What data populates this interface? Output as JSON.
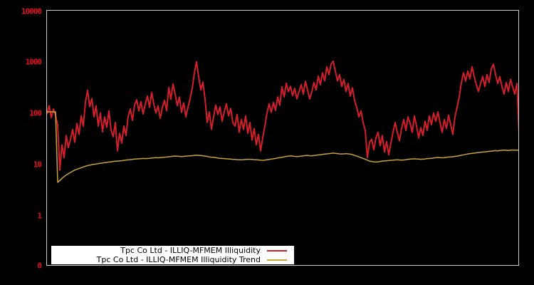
{
  "colors": {
    "background": "#000000",
    "plot_border": "#c9c9c9",
    "axis_label": "#e3101e",
    "series_red": "#d51f2b",
    "series_trend": "#c9a43c",
    "legend_background": "#ffffff",
    "legend_text": "#000000"
  },
  "chart_data": {
    "type": "line",
    "title": "",
    "background": "#000000",
    "grid": false,
    "legend_position": "bottom-left-inside",
    "x_axis": {
      "tick_labels": []
    },
    "y_axis": {
      "scale": "log",
      "tick_labels": [
        "10000",
        "1000",
        "100",
        "10",
        "1",
        "0"
      ],
      "tick_values": [
        10000,
        1000,
        100,
        10,
        1,
        0
      ],
      "range_top": 10000,
      "range_bottom_label": 0,
      "color": "#e3101e"
    },
    "x0": 0,
    "dx": 3,
    "series": [
      {
        "name": "Tpc Co Ltd - ILLIQ-MFMEM Illiquidity",
        "color": "#d51f2b",
        "stroke_width": 2,
        "values": [
          100,
          145,
          85,
          125,
          95,
          60,
          8,
          25,
          14,
          38,
          22,
          32,
          50,
          28,
          65,
          40,
          92,
          58,
          170,
          290,
          140,
          200,
          88,
          145,
          58,
          105,
          45,
          88,
          55,
          115,
          48,
          36,
          68,
          19,
          42,
          27,
          58,
          38,
          90,
          125,
          75,
          150,
          190,
          115,
          175,
          100,
          155,
          225,
          135,
          265,
          155,
          105,
          145,
          82,
          135,
          185,
          115,
          330,
          195,
          385,
          245,
          145,
          215,
          108,
          165,
          88,
          135,
          200,
          320,
          640,
          1050,
          540,
          295,
          420,
          195,
          68,
          110,
          50,
          88,
          150,
          98,
          138,
          72,
          112,
          158,
          92,
          128,
          68,
          58,
          98,
          44,
          78,
          50,
          92,
          42,
          68,
          31,
          52,
          25,
          40,
          19,
          34,
          58,
          105,
          158,
          108,
          168,
          118,
          215,
          148,
          340,
          215,
          400,
          275,
          345,
          228,
          315,
          198,
          275,
          375,
          245,
          435,
          295,
          198,
          275,
          415,
          295,
          550,
          375,
          640,
          445,
          840,
          590,
          950,
          1080,
          690,
          445,
          590,
          345,
          475,
          275,
          395,
          225,
          325,
          185,
          135,
          88,
          115,
          68,
          48,
          14,
          28,
          32,
          20,
          34,
          44,
          24,
          38,
          18,
          29,
          16,
          27,
          44,
          68,
          44,
          30,
          52,
          78,
          48,
          88,
          66,
          44,
          92,
          58,
          34,
          54,
          38,
          72,
          48,
          92,
          62,
          105,
          72,
          110,
          68,
          44,
          78,
          52,
          95,
          62,
          40,
          88,
          135,
          215,
          410,
          640,
          440,
          690,
          490,
          840,
          540,
          375,
          275,
          395,
          540,
          345,
          590,
          415,
          760,
          940,
          590,
          395,
          540,
          345,
          245,
          415,
          275,
          475,
          340,
          245,
          395,
          42
        ]
      },
      {
        "name": "Tpc Co Ltd - ILLIQ-MFMEM Illiquidity Trend",
        "color": "#c9a43c",
        "stroke_width": 1.5,
        "values": [
          110,
          110,
          110,
          110,
          110,
          4.6,
          5.0,
          5.5,
          6.0,
          6.4,
          6.8,
          7.2,
          7.6,
          8.0,
          8.3,
          8.6,
          8.9,
          9.2,
          9.5,
          9.8,
          10.0,
          10.2,
          10.4,
          10.5,
          10.7,
          10.9,
          11.0,
          11.2,
          11.3,
          11.5,
          11.6,
          11.8,
          11.9,
          12.0,
          12.1,
          12.2,
          12.4,
          12.5,
          12.7,
          12.8,
          13.0,
          13.1,
          13.2,
          13.3,
          13.4,
          13.5,
          13.4,
          13.5,
          13.6,
          13.8,
          13.9,
          14.0,
          13.9,
          14.0,
          14.1,
          14.3,
          14.4,
          14.6,
          14.7,
          14.9,
          15.0,
          14.9,
          14.8,
          14.7,
          14.8,
          15.0,
          15.1,
          15.2,
          15.3,
          15.5,
          15.6,
          15.5,
          15.4,
          15.2,
          15.0,
          14.8,
          14.5,
          14.3,
          14.2,
          14.0,
          13.8,
          13.6,
          13.5,
          13.4,
          13.3,
          13.2,
          13.1,
          13.0,
          12.9,
          12.8,
          12.7,
          12.7,
          12.8,
          12.9,
          13.0,
          13.0,
          12.9,
          12.8,
          12.7,
          12.6,
          12.5,
          12.4,
          12.5,
          12.7,
          12.9,
          13.1,
          13.3,
          13.5,
          13.8,
          14.0,
          14.3,
          14.5,
          14.8,
          15.0,
          15.2,
          15.0,
          14.8,
          14.7,
          14.8,
          15.0,
          15.2,
          15.4,
          15.5,
          15.3,
          15.2,
          15.4,
          15.6,
          15.8,
          16.0,
          16.2,
          16.4,
          16.6,
          16.8,
          17.0,
          17.2,
          17.0,
          16.8,
          16.6,
          16.5,
          16.6,
          16.8,
          16.6,
          16.4,
          16.0,
          15.5,
          15.0,
          14.5,
          14.0,
          13.5,
          13.0,
          12.5,
          12.0,
          11.8,
          11.6,
          11.5,
          11.6,
          11.8,
          12.0,
          12.1,
          12.2,
          12.3,
          12.4,
          12.5,
          12.6,
          12.7,
          12.6,
          12.5,
          12.6,
          12.8,
          13.0,
          13.1,
          13.2,
          13.3,
          13.2,
          13.1,
          13.0,
          13.1,
          13.2,
          13.4,
          13.5,
          13.6,
          13.8,
          14.0,
          14.1,
          14.0,
          13.9,
          14.0,
          14.2,
          14.4,
          14.5,
          14.6,
          14.8,
          15.0,
          15.3,
          15.6,
          15.9,
          16.2,
          16.5,
          16.8,
          17.0,
          17.2,
          17.4,
          17.6,
          17.8,
          18.0,
          18.2,
          18.4,
          18.6,
          18.8,
          19.0,
          19.2,
          19.0,
          19.3,
          19.5,
          19.7,
          19.5,
          19.3,
          19.6,
          19.8,
          19.5,
          19.7,
          19.5
        ]
      }
    ]
  }
}
